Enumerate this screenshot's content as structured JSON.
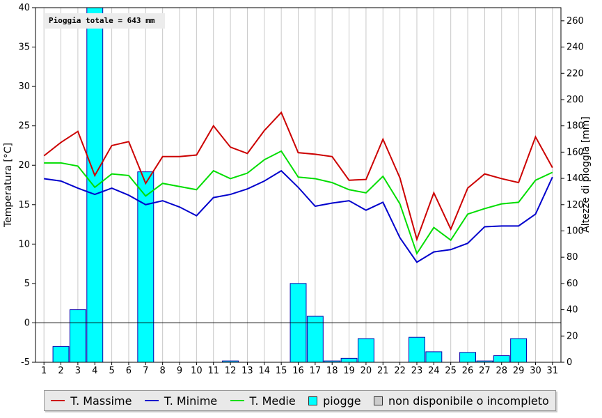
{
  "total_rain_label": "Pioggia totale = 643 mm",
  "chart_data": {
    "type": "line",
    "title": "",
    "xlabel": "",
    "ylabel": "Temperatura [°C]",
    "y2label": "Altezze di pioggia [mm]",
    "ylim": [
      -5,
      40
    ],
    "y2lim": [
      0,
      270
    ],
    "yticks": [
      -5,
      0,
      5,
      10,
      15,
      20,
      25,
      30,
      35,
      40
    ],
    "y2ticks": [
      0,
      20,
      40,
      60,
      80,
      100,
      120,
      140,
      160,
      180,
      200,
      220,
      240,
      260
    ],
    "grid": true,
    "categories": [
      "1",
      "2",
      "3",
      "4",
      "5",
      "6",
      "7",
      "8",
      "9",
      "10",
      "11",
      "12",
      "13",
      "14",
      "15",
      "16",
      "17",
      "18",
      "19",
      "20",
      "21",
      "22",
      "23",
      "24",
      "25",
      "26",
      "27",
      "28",
      "29",
      "30",
      "31"
    ],
    "series": [
      {
        "name": "T. Massime",
        "color": "#cc0000",
        "axis": "left",
        "values": [
          21.2,
          22.9,
          24.3,
          18.7,
          22.5,
          23.0,
          17.7,
          21.1,
          21.1,
          21.3,
          25.0,
          22.3,
          21.5,
          24.4,
          26.7,
          21.6,
          21.4,
          21.1,
          18.1,
          18.2,
          23.3,
          18.4,
          10.6,
          16.5,
          11.9,
          17.1,
          18.9,
          18.3,
          17.8,
          23.6,
          19.7
        ]
      },
      {
        "name": "T. Minime",
        "color": "#0000cc",
        "axis": "left",
        "values": [
          18.3,
          18.0,
          17.1,
          16.3,
          17.1,
          16.2,
          15.0,
          15.5,
          14.7,
          13.6,
          15.9,
          16.3,
          17.0,
          18.0,
          19.3,
          17.2,
          14.8,
          15.2,
          15.5,
          14.3,
          15.3,
          10.8,
          7.7,
          9.0,
          9.3,
          10.1,
          12.2,
          12.3,
          12.3,
          13.8,
          18.5
        ]
      },
      {
        "name": "T. Medie",
        "color": "#00dd00",
        "axis": "left",
        "values": [
          20.3,
          20.3,
          19.9,
          17.2,
          18.9,
          18.7,
          16.1,
          17.7,
          17.3,
          16.9,
          19.3,
          18.3,
          19.0,
          20.7,
          21.8,
          18.5,
          18.3,
          17.8,
          16.9,
          16.5,
          18.6,
          15.1,
          8.8,
          12.1,
          10.5,
          13.8,
          14.5,
          15.1,
          15.3,
          18.1,
          19.1
        ]
      },
      {
        "name": "piogge",
        "color": "#00ffff",
        "axis": "right",
        "type": "bar",
        "values": [
          0,
          12,
          40,
          270,
          0,
          0,
          145,
          0,
          0,
          0,
          0,
          1,
          0,
          0,
          0,
          60,
          35,
          1,
          3,
          18,
          0,
          0,
          19,
          8,
          0,
          7.5,
          1,
          5,
          18,
          0,
          0
        ]
      }
    ],
    "legend_placement": "bottom",
    "legend": [
      "T. Massime",
      "T. Minime",
      "T. Medie",
      "piogge",
      "non disponibile o incompleto"
    ]
  },
  "legend": {
    "items": [
      {
        "label": "T. Massime",
        "color": "#cc0000",
        "kind": "line"
      },
      {
        "label": "T. Minime",
        "color": "#0000cc",
        "kind": "line"
      },
      {
        "label": "T. Medie",
        "color": "#00dd00",
        "kind": "line"
      },
      {
        "label": "piogge",
        "color": "#00ffff",
        "kind": "box"
      },
      {
        "label": "non disponibile o incompleto",
        "color": "#cccccc",
        "kind": "box"
      }
    ]
  }
}
